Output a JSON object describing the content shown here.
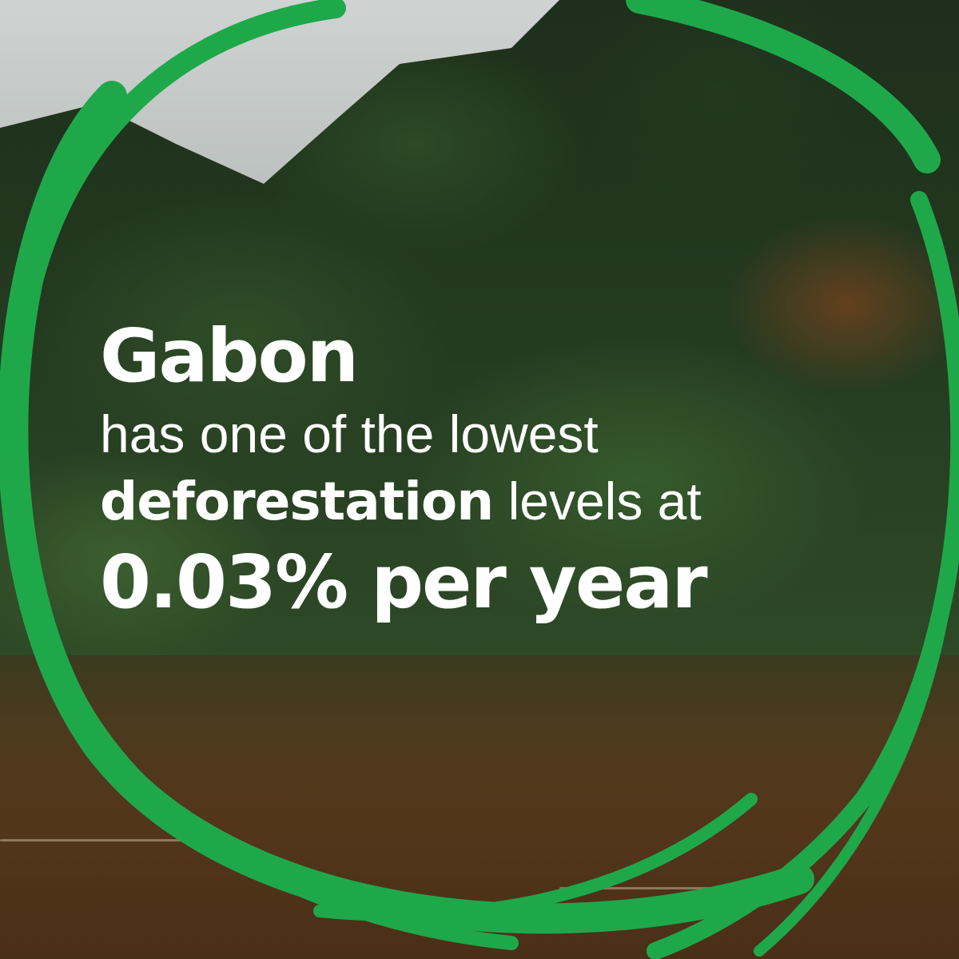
{
  "headline": {
    "line1": "Gabon",
    "line2": "has one of the lowest",
    "line3_bold": "deforestation",
    "line3_rest": " levels at",
    "line4": "0.03% per year"
  },
  "colors": {
    "accent_green": "#1fa84a",
    "text": "#ffffff"
  }
}
